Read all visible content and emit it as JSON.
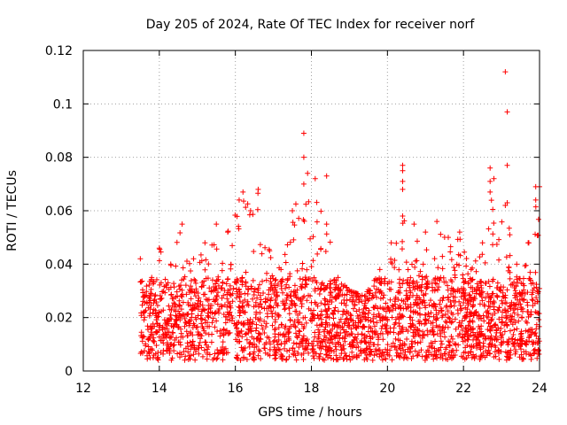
{
  "chart_data": {
    "type": "scatter",
    "title": "Day 205 of 2024, Rate Of TEC Index for receiver norf",
    "xlabel": "GPS time / hours",
    "ylabel": "ROTI / TECUs",
    "xlim": [
      12,
      24
    ],
    "ylim": [
      0,
      0.12
    ],
    "x_ticks": [
      12,
      14,
      16,
      18,
      20,
      22,
      24
    ],
    "x_tick_labels": [
      "12",
      "14",
      "16",
      "18",
      "20",
      "22",
      "24"
    ],
    "y_ticks": [
      0,
      0.02,
      0.04,
      0.06,
      0.08,
      0.1,
      0.12
    ],
    "y_tick_labels": [
      "0",
      "0.02",
      "0.04",
      "0.06",
      "0.08",
      "0.1",
      "0.12"
    ],
    "grid": true,
    "marker": "+",
    "marker_color": "#ff0000",
    "series": [
      {
        "name": "ROTI",
        "x_range": [
          13.5,
          24
        ],
        "typical_range": [
          0.004,
          0.035
        ],
        "envelope": [
          {
            "x": 13.5,
            "y": 0.042
          },
          {
            "x": 13.8,
            "y": 0.035
          },
          {
            "x": 14.0,
            "y": 0.046
          },
          {
            "x": 14.3,
            "y": 0.04
          },
          {
            "x": 14.6,
            "y": 0.055
          },
          {
            "x": 14.9,
            "y": 0.042
          },
          {
            "x": 15.2,
            "y": 0.048
          },
          {
            "x": 15.5,
            "y": 0.055
          },
          {
            "x": 15.8,
            "y": 0.052
          },
          {
            "x": 16.1,
            "y": 0.064
          },
          {
            "x": 16.2,
            "y": 0.067
          },
          {
            "x": 16.4,
            "y": 0.06
          },
          {
            "x": 16.6,
            "y": 0.068
          },
          {
            "x": 16.9,
            "y": 0.045
          },
          {
            "x": 17.2,
            "y": 0.038
          },
          {
            "x": 17.5,
            "y": 0.06
          },
          {
            "x": 17.8,
            "y": 0.07
          },
          {
            "x": 18.1,
            "y": 0.072
          },
          {
            "x": 18.4,
            "y": 0.055
          },
          {
            "x": 18.7,
            "y": 0.035
          },
          {
            "x": 19.0,
            "y": 0.03
          },
          {
            "x": 19.4,
            "y": 0.028
          },
          {
            "x": 19.8,
            "y": 0.038
          },
          {
            "x": 20.1,
            "y": 0.048
          },
          {
            "x": 20.4,
            "y": 0.058
          },
          {
            "x": 20.7,
            "y": 0.055
          },
          {
            "x": 21.0,
            "y": 0.052
          },
          {
            "x": 21.3,
            "y": 0.056
          },
          {
            "x": 21.6,
            "y": 0.05
          },
          {
            "x": 21.9,
            "y": 0.052
          },
          {
            "x": 22.2,
            "y": 0.038
          },
          {
            "x": 22.5,
            "y": 0.048
          },
          {
            "x": 22.8,
            "y": 0.072
          },
          {
            "x": 23.1,
            "y": 0.062
          },
          {
            "x": 23.4,
            "y": 0.04
          },
          {
            "x": 23.7,
            "y": 0.048
          },
          {
            "x": 24.0,
            "y": 0.069
          }
        ],
        "outliers": [
          {
            "x": 17.8,
            "y": 0.089
          },
          {
            "x": 17.8,
            "y": 0.08
          },
          {
            "x": 17.9,
            "y": 0.074
          },
          {
            "x": 18.4,
            "y": 0.073
          },
          {
            "x": 20.4,
            "y": 0.077
          },
          {
            "x": 20.4,
            "y": 0.075
          },
          {
            "x": 20.4,
            "y": 0.071
          },
          {
            "x": 20.4,
            "y": 0.068
          },
          {
            "x": 22.7,
            "y": 0.076
          },
          {
            "x": 22.7,
            "y": 0.071
          },
          {
            "x": 22.7,
            "y": 0.067
          },
          {
            "x": 23.1,
            "y": 0.112
          },
          {
            "x": 23.15,
            "y": 0.097
          },
          {
            "x": 23.15,
            "y": 0.077
          },
          {
            "x": 23.15,
            "y": 0.063
          },
          {
            "x": 23.9,
            "y": 0.069
          },
          {
            "x": 23.9,
            "y": 0.064
          }
        ]
      }
    ]
  }
}
